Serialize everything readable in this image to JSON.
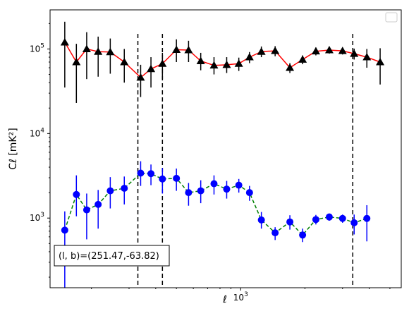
{
  "chart_data": {
    "type": "scatter",
    "x_scale": "log",
    "y_scale": "log",
    "xlim": [
      128,
      5650
    ],
    "ylim": [
      150,
      290000
    ],
    "xlabel": "ℓ",
    "ylabel": "Cℓ [mK²]",
    "x_tick_labels": [
      {
        "value": 1000,
        "base": "10",
        "exp": "3"
      }
    ],
    "y_tick_labels": [
      {
        "value": 1000,
        "base": "10",
        "exp": "3"
      },
      {
        "value": 10000,
        "base": "10",
        "exp": "4"
      },
      {
        "value": 100000,
        "base": "10",
        "exp": "5"
      }
    ],
    "legend": {
      "position": "top-right",
      "entries": []
    },
    "annotation": "(l, b)=(251.47,-63.82)",
    "vlines": [
      330,
      430,
      3350
    ],
    "series": [
      {
        "marker": "triangle",
        "marker_color": "#000000",
        "line_color": "#ff0000",
        "line_style": "solid",
        "points": [
          {
            "x": 150,
            "y": 120000,
            "lo": 35000,
            "hi": 210000
          },
          {
            "x": 170,
            "y": 70000,
            "lo": 23000,
            "hi": 115000
          },
          {
            "x": 190,
            "y": 100000,
            "lo": 44000,
            "hi": 158000
          },
          {
            "x": 215,
            "y": 93000,
            "lo": 47000,
            "hi": 140000
          },
          {
            "x": 245,
            "y": 92000,
            "lo": 51000,
            "hi": 133000
          },
          {
            "x": 285,
            "y": 70000,
            "lo": 40000,
            "hi": 100000
          },
          {
            "x": 340,
            "y": 46000,
            "lo": 27000,
            "hi": 65000
          },
          {
            "x": 380,
            "y": 58000,
            "lo": 35000,
            "hi": 80000
          },
          {
            "x": 430,
            "y": 67000,
            "lo": 44000,
            "hi": 90000
          },
          {
            "x": 500,
            "y": 98000,
            "lo": 70000,
            "hi": 130000
          },
          {
            "x": 570,
            "y": 97000,
            "lo": 70000,
            "hi": 125000
          },
          {
            "x": 650,
            "y": 72000,
            "lo": 56000,
            "hi": 90000
          },
          {
            "x": 750,
            "y": 64000,
            "lo": 50000,
            "hi": 80000
          },
          {
            "x": 860,
            "y": 65000,
            "lo": 52000,
            "hi": 80000
          },
          {
            "x": 980,
            "y": 67000,
            "lo": 55000,
            "hi": 79000
          },
          {
            "x": 1100,
            "y": 80000,
            "lo": 68000,
            "hi": 92000
          },
          {
            "x": 1250,
            "y": 93000,
            "lo": 80000,
            "hi": 107000
          },
          {
            "x": 1450,
            "y": 95000,
            "lo": 82000,
            "hi": 108000
          },
          {
            "x": 1700,
            "y": 60000,
            "lo": 52000,
            "hi": 68000
          },
          {
            "x": 1950,
            "y": 75000,
            "lo": 66000,
            "hi": 84000
          },
          {
            "x": 2250,
            "y": 94000,
            "lo": 84000,
            "hi": 104000
          },
          {
            "x": 2600,
            "y": 97000,
            "lo": 88000,
            "hi": 106000
          },
          {
            "x": 3000,
            "y": 95000,
            "lo": 86000,
            "hi": 104000
          },
          {
            "x": 3400,
            "y": 88000,
            "lo": 75000,
            "hi": 101000
          },
          {
            "x": 3900,
            "y": 80000,
            "lo": 60000,
            "hi": 100000
          },
          {
            "x": 4500,
            "y": 70000,
            "lo": 38000,
            "hi": 102000
          }
        ]
      },
      {
        "marker": "circle",
        "marker_color": "#0000ff",
        "line_color": "#008000",
        "line_style": "dashed",
        "points": [
          {
            "x": 150,
            "y": 720,
            "lo": 150,
            "hi": 1200
          },
          {
            "x": 170,
            "y": 1900,
            "lo": 1050,
            "hi": 3200
          },
          {
            "x": 190,
            "y": 1250,
            "lo": 560,
            "hi": 1950
          },
          {
            "x": 215,
            "y": 1450,
            "lo": 750,
            "hi": 2150
          },
          {
            "x": 245,
            "y": 2100,
            "lo": 1300,
            "hi": 3050
          },
          {
            "x": 285,
            "y": 2250,
            "lo": 1450,
            "hi": 3100
          },
          {
            "x": 340,
            "y": 3400,
            "lo": 2400,
            "hi": 4700
          },
          {
            "x": 380,
            "y": 3350,
            "lo": 2450,
            "hi": 4300
          },
          {
            "x": 430,
            "y": 2900,
            "lo": 1950,
            "hi": 3900
          },
          {
            "x": 500,
            "y": 2950,
            "lo": 2100,
            "hi": 3850
          },
          {
            "x": 570,
            "y": 2000,
            "lo": 1400,
            "hi": 2600
          },
          {
            "x": 650,
            "y": 2100,
            "lo": 1500,
            "hi": 2800
          },
          {
            "x": 750,
            "y": 2550,
            "lo": 1900,
            "hi": 3200
          },
          {
            "x": 860,
            "y": 2200,
            "lo": 1700,
            "hi": 2750
          },
          {
            "x": 980,
            "y": 2450,
            "lo": 2000,
            "hi": 2900
          },
          {
            "x": 1100,
            "y": 2000,
            "lo": 1600,
            "hi": 2400
          },
          {
            "x": 1250,
            "y": 950,
            "lo": 750,
            "hi": 1180
          },
          {
            "x": 1450,
            "y": 670,
            "lo": 550,
            "hi": 780
          },
          {
            "x": 1700,
            "y": 900,
            "lo": 730,
            "hi": 1080
          },
          {
            "x": 1950,
            "y": 630,
            "lo": 520,
            "hi": 750
          },
          {
            "x": 2250,
            "y": 960,
            "lo": 840,
            "hi": 1090
          },
          {
            "x": 2600,
            "y": 1030,
            "lo": 930,
            "hi": 1130
          },
          {
            "x": 3000,
            "y": 990,
            "lo": 880,
            "hi": 1100
          },
          {
            "x": 3400,
            "y": 880,
            "lo": 640,
            "hi": 1100
          },
          {
            "x": 3900,
            "y": 990,
            "lo": 530,
            "hi": 1420
          }
        ]
      }
    ]
  }
}
